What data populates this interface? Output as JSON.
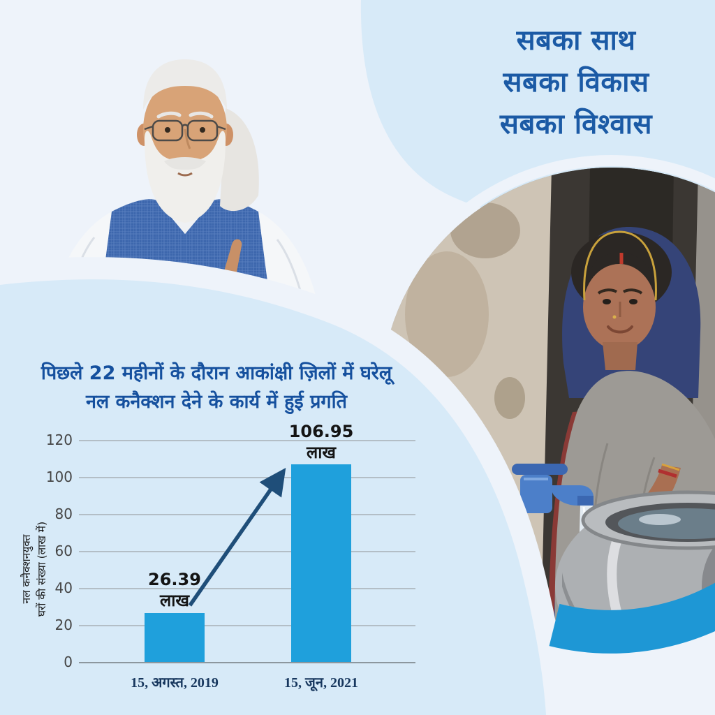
{
  "theme": {
    "bg": "#EEF3FA",
    "blob": "#D7EAF8",
    "headline": "#1B5AA5",
    "title": "#15509E",
    "bar": "#1FA0DC",
    "arrow": "#1F4E79",
    "crescent": "#1E97D5",
    "xlabel": "#17375E",
    "grid": "#B3BEC6",
    "axis": "#8C979E",
    "tick": "#454545",
    "value": "#141414"
  },
  "headline": {
    "text": "सबका साथ\nसबका विकास\nसबका विश्वास"
  },
  "photos": {
    "pm": "portrait-of-pm-in-blue-checked-vest-pointing-finger",
    "woman": "smiling-woman-in-grey-shawl-filling-steel-pot-from-blue-tap"
  },
  "chart_data": {
    "type": "bar",
    "title": "पिछले 22 महीनों के दौरान आकांक्षी ज़िलों में घरेलू\nनल कनैक्शन देने के कार्य में हुई प्रगति",
    "ylabel": "नल कनैक्शनयुक्त\nघरों की संख्या (लाख में)",
    "xlabel": "",
    "categories": [
      "15, अगस्त, 2019",
      "15, जून, 2021"
    ],
    "values": [
      26.39,
      106.95
    ],
    "bar_labels": [
      "26.39\nलाख",
      "106.95\nलाख"
    ],
    "yticks": [
      0,
      20,
      40,
      60,
      80,
      100,
      120
    ],
    "ylim": [
      0,
      120
    ],
    "grid": true,
    "legend": "none",
    "annotation": "growth-arrow-from-first-bar-to-second-bar"
  }
}
